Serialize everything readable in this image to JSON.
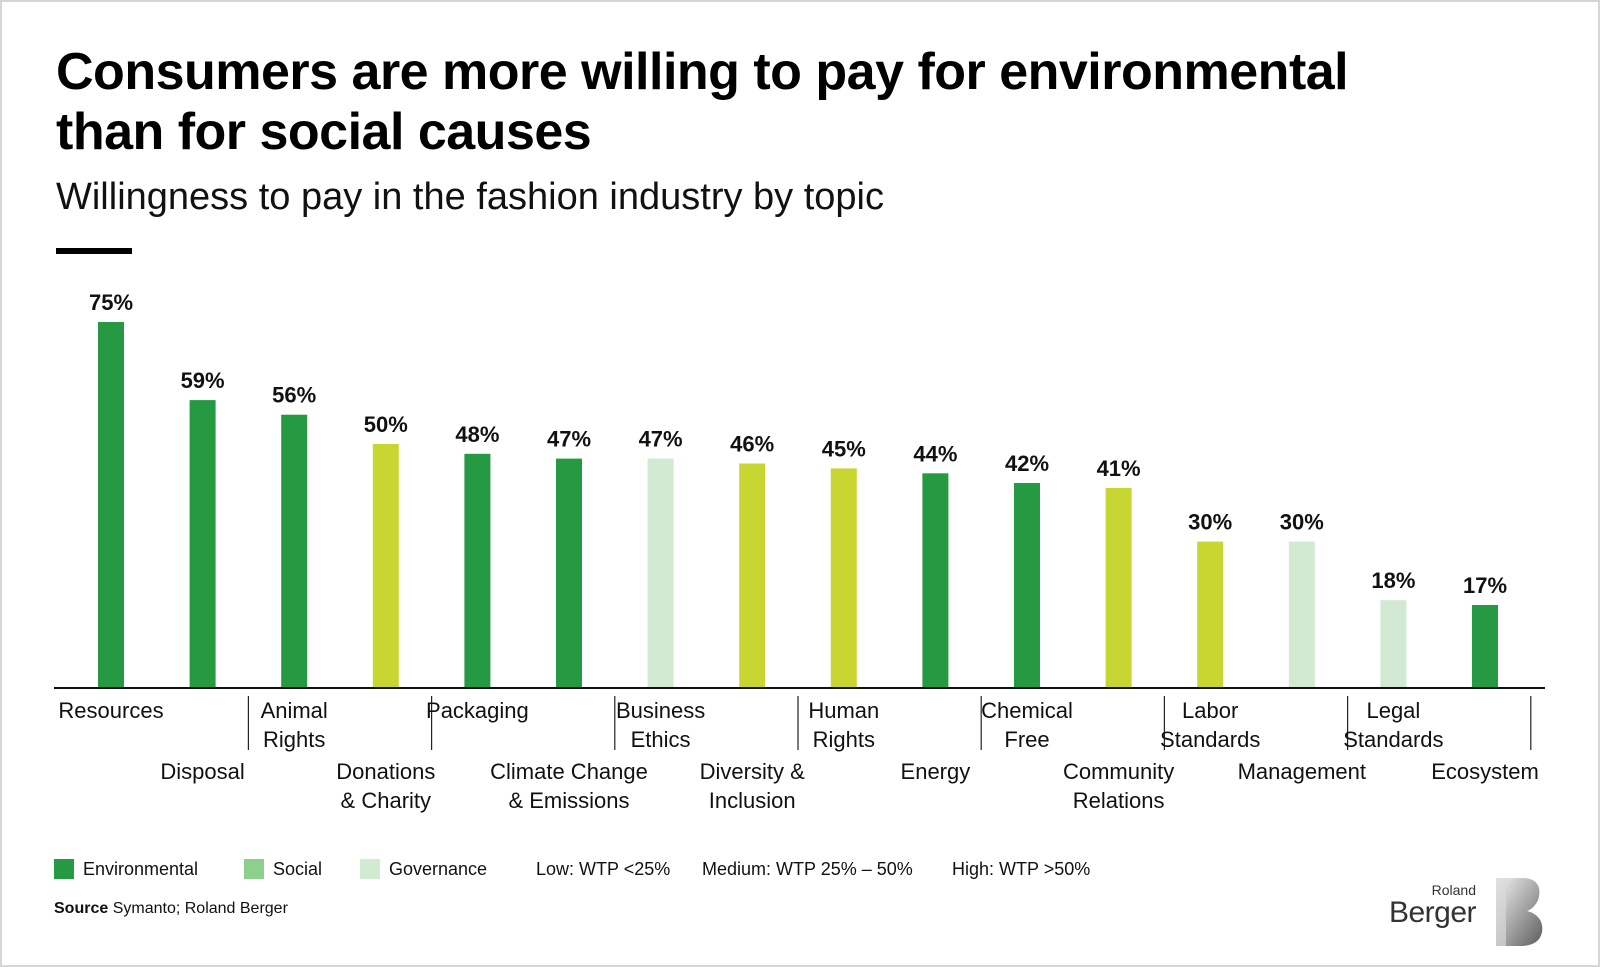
{
  "title": "Consumers are more willing to pay for environmental than for social causes",
  "subtitle": "Willingness to pay in the fashion industry by topic",
  "colors": {
    "environmental": "#259a43",
    "social": "#c8d632",
    "governance": "#d3ead2",
    "legend_social": "#8fcf8d"
  },
  "chart_data": {
    "type": "bar",
    "categories": [
      "Resources",
      "Disposal",
      "Animal Rights",
      "Donations & Charity",
      "Packaging",
      "Climate Change & Emissions",
      "Business Ethics",
      "Diversity & Inclusion",
      "Human Rights",
      "Energy",
      "Chemical Free",
      "Community Relations",
      "Labor Standards",
      "Management",
      "Legal Standards",
      "Ecosystem"
    ],
    "category_lines": [
      [
        "Resources"
      ],
      [
        "Disposal"
      ],
      [
        "Animal",
        "Rights"
      ],
      [
        "Donations",
        "& Charity"
      ],
      [
        "Packaging"
      ],
      [
        "Climate Change",
        "& Emissions"
      ],
      [
        "Business",
        "Ethics"
      ],
      [
        "Diversity &",
        "Inclusion"
      ],
      [
        "Human",
        "Rights"
      ],
      [
        "Energy"
      ],
      [
        "Chemical",
        "Free"
      ],
      [
        "Community",
        "Relations"
      ],
      [
        "Labor",
        "Standards"
      ],
      [
        "Management"
      ],
      [
        "Legal",
        "Standards"
      ],
      [
        "Ecosystem"
      ]
    ],
    "values": [
      75,
      59,
      56,
      50,
      48,
      47,
      47,
      46,
      45,
      44,
      42,
      41,
      30,
      30,
      18,
      17
    ],
    "value_labels": [
      "75%",
      "59%",
      "56%",
      "50%",
      "48%",
      "47%",
      "47%",
      "46%",
      "45%",
      "44%",
      "42%",
      "41%",
      "30%",
      "30%",
      "18%",
      "17%"
    ],
    "groups": [
      "environmental",
      "environmental",
      "environmental",
      "social",
      "environmental",
      "environmental",
      "governance",
      "social",
      "social",
      "environmental",
      "environmental",
      "social",
      "social",
      "governance",
      "governance",
      "environmental"
    ],
    "ylim": [
      0,
      100
    ],
    "grid": false
  },
  "legend": {
    "environmental": "Environmental",
    "social": "Social",
    "governance": "Governance",
    "low": "Low: WTP <25%",
    "medium": "Medium: WTP 25% – 50%",
    "high": "High: WTP >50%"
  },
  "source": {
    "label": "Source",
    "text": "Symanto; Roland Berger"
  },
  "brand": {
    "line1": "Roland",
    "line2": "Berger"
  }
}
